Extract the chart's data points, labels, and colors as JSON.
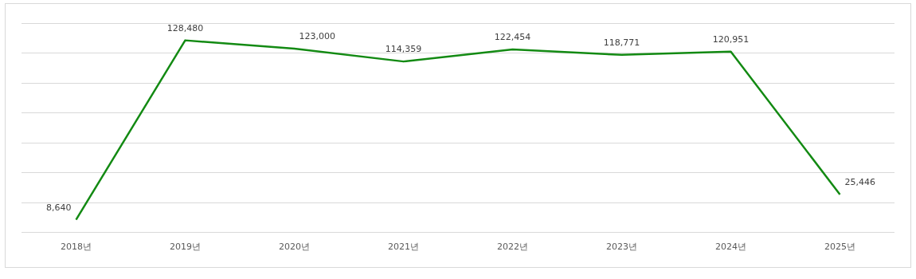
{
  "chart_data": {
    "type": "line",
    "categories": [
      "2018년",
      "2019년",
      "2020년",
      "2021년",
      "2022년",
      "2023년",
      "2024년",
      "2025년"
    ],
    "values": [
      8640,
      128480,
      123000,
      114359,
      122454,
      118771,
      120951,
      25446
    ],
    "color": "#138a13",
    "value_labels": [
      "8,640",
      "128,480",
      "123,000",
      "114,359",
      "122,454",
      "118,771",
      "120,951",
      "25,446"
    ],
    "grid": "y",
    "tick_labels": "x",
    "marker": "none"
  }
}
